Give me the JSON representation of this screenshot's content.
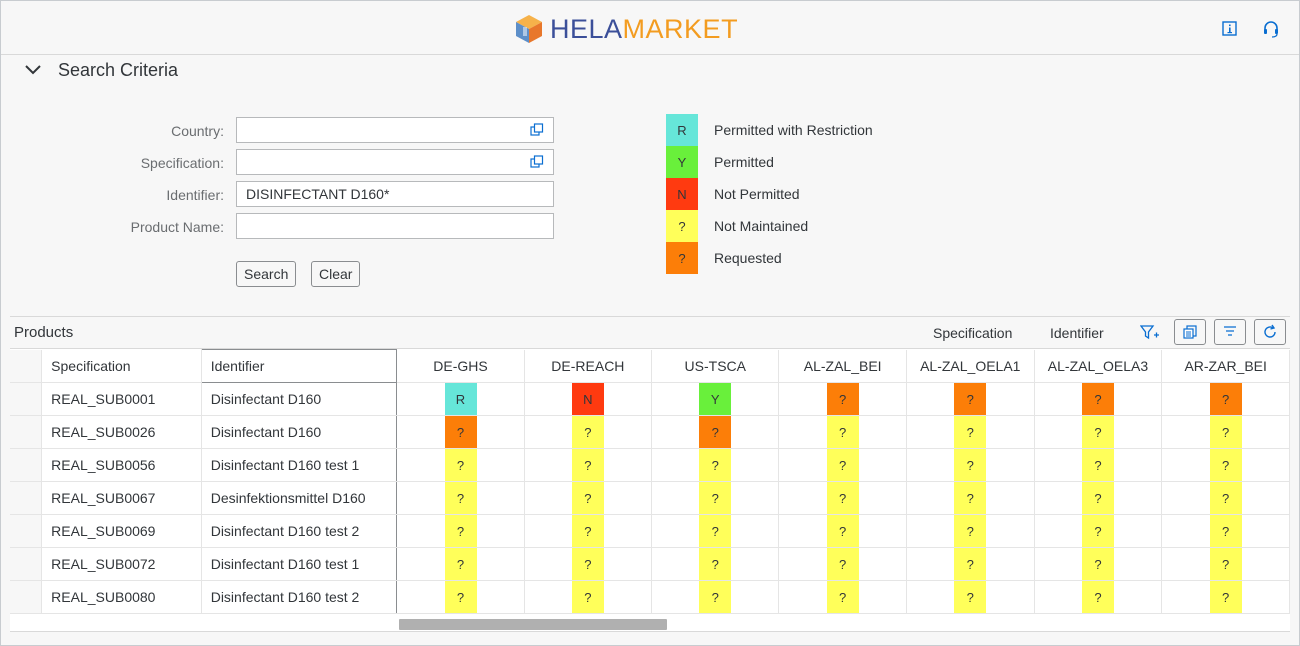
{
  "app": {
    "logo_part1": "HELA",
    "logo_part2": "MARKET"
  },
  "colors": {
    "R": "#66e6d9",
    "Y": "#69f03b",
    "N": "#ff3a10",
    "?": "#ffff5a",
    "?o": "#fc7e08"
  },
  "search": {
    "title": "Search Criteria",
    "fields": [
      {
        "label": "Country:",
        "value": "",
        "placeholder": ""
      },
      {
        "label": "Specification:",
        "value": "",
        "placeholder": ""
      },
      {
        "label": "Identifier:",
        "value": "DISINFECTANT D160*",
        "placeholder": ""
      },
      {
        "label": "Product Name:",
        "value": "",
        "placeholder": ""
      }
    ],
    "search_label": "Search",
    "clear_label": "Clear"
  },
  "legend": [
    {
      "code": "R",
      "label": "Permitted with Restriction",
      "color": "#66e6d9"
    },
    {
      "code": "Y",
      "label": "Permitted",
      "color": "#69f03b"
    },
    {
      "code": "N",
      "label": "Not Permitted",
      "color": "#ff3a10"
    },
    {
      "code": "?",
      "label": "Not Maintained",
      "color": "#ffff5a"
    },
    {
      "code": "?",
      "label": "Requested",
      "color": "#fc7e08"
    }
  ],
  "products": {
    "title": "Products",
    "toolbar": {
      "specification_label": "Specification",
      "identifier_label": "Identifier"
    },
    "columns": [
      "Specification",
      "Identifier",
      "DE-GHS",
      "DE-REACH",
      "US-TSCA",
      "AL-ZAL_BEI",
      "AL-ZAL_OELA1",
      "AL-ZAL_OELA3",
      "AR-ZAR_BEI"
    ],
    "rows": [
      {
        "spec": "REAL_SUB0001",
        "id": "Disinfectant D160",
        "cells": [
          [
            "R",
            "#66e6d9"
          ],
          [
            "N",
            "#ff3a10"
          ],
          [
            "Y",
            "#69f03b"
          ],
          [
            "?",
            "#fc7e08"
          ],
          [
            "?",
            "#fc7e08"
          ],
          [
            "?",
            "#fc7e08"
          ],
          [
            "?",
            "#fc7e08"
          ]
        ]
      },
      {
        "spec": "REAL_SUB0026",
        "id": "Disinfectant D160",
        "cells": [
          [
            "?",
            "#fc7e08"
          ],
          [
            "?",
            "#ffff5a"
          ],
          [
            "?",
            "#fc7e08"
          ],
          [
            "?",
            "#ffff5a"
          ],
          [
            "?",
            "#ffff5a"
          ],
          [
            "?",
            "#ffff5a"
          ],
          [
            "?",
            "#ffff5a"
          ]
        ]
      },
      {
        "spec": "REAL_SUB0056",
        "id": "Disinfectant D160 test 1",
        "cells": [
          [
            "?",
            "#ffff5a"
          ],
          [
            "?",
            "#ffff5a"
          ],
          [
            "?",
            "#ffff5a"
          ],
          [
            "?",
            "#ffff5a"
          ],
          [
            "?",
            "#ffff5a"
          ],
          [
            "?",
            "#ffff5a"
          ],
          [
            "?",
            "#ffff5a"
          ]
        ]
      },
      {
        "spec": "REAL_SUB0067",
        "id": "Desinfektionsmittel D160",
        "cells": [
          [
            "?",
            "#ffff5a"
          ],
          [
            "?",
            "#ffff5a"
          ],
          [
            "?",
            "#ffff5a"
          ],
          [
            "?",
            "#ffff5a"
          ],
          [
            "?",
            "#ffff5a"
          ],
          [
            "?",
            "#ffff5a"
          ],
          [
            "?",
            "#ffff5a"
          ]
        ]
      },
      {
        "spec": "REAL_SUB0069",
        "id": "Disinfectant D160 test 2",
        "cells": [
          [
            "?",
            "#ffff5a"
          ],
          [
            "?",
            "#ffff5a"
          ],
          [
            "?",
            "#ffff5a"
          ],
          [
            "?",
            "#ffff5a"
          ],
          [
            "?",
            "#ffff5a"
          ],
          [
            "?",
            "#ffff5a"
          ],
          [
            "?",
            "#ffff5a"
          ]
        ]
      },
      {
        "spec": "REAL_SUB0072",
        "id": "Disinfectant D160 test 1",
        "cells": [
          [
            "?",
            "#ffff5a"
          ],
          [
            "?",
            "#ffff5a"
          ],
          [
            "?",
            "#ffff5a"
          ],
          [
            "?",
            "#ffff5a"
          ],
          [
            "?",
            "#ffff5a"
          ],
          [
            "?",
            "#ffff5a"
          ],
          [
            "?",
            "#ffff5a"
          ]
        ]
      },
      {
        "spec": "REAL_SUB0080",
        "id": "Disinfectant D160 test 2",
        "cells": [
          [
            "?",
            "#ffff5a"
          ],
          [
            "?",
            "#ffff5a"
          ],
          [
            "?",
            "#ffff5a"
          ],
          [
            "?",
            "#ffff5a"
          ],
          [
            "?",
            "#ffff5a"
          ],
          [
            "?",
            "#ffff5a"
          ],
          [
            "?",
            "#ffff5a"
          ]
        ]
      }
    ]
  }
}
